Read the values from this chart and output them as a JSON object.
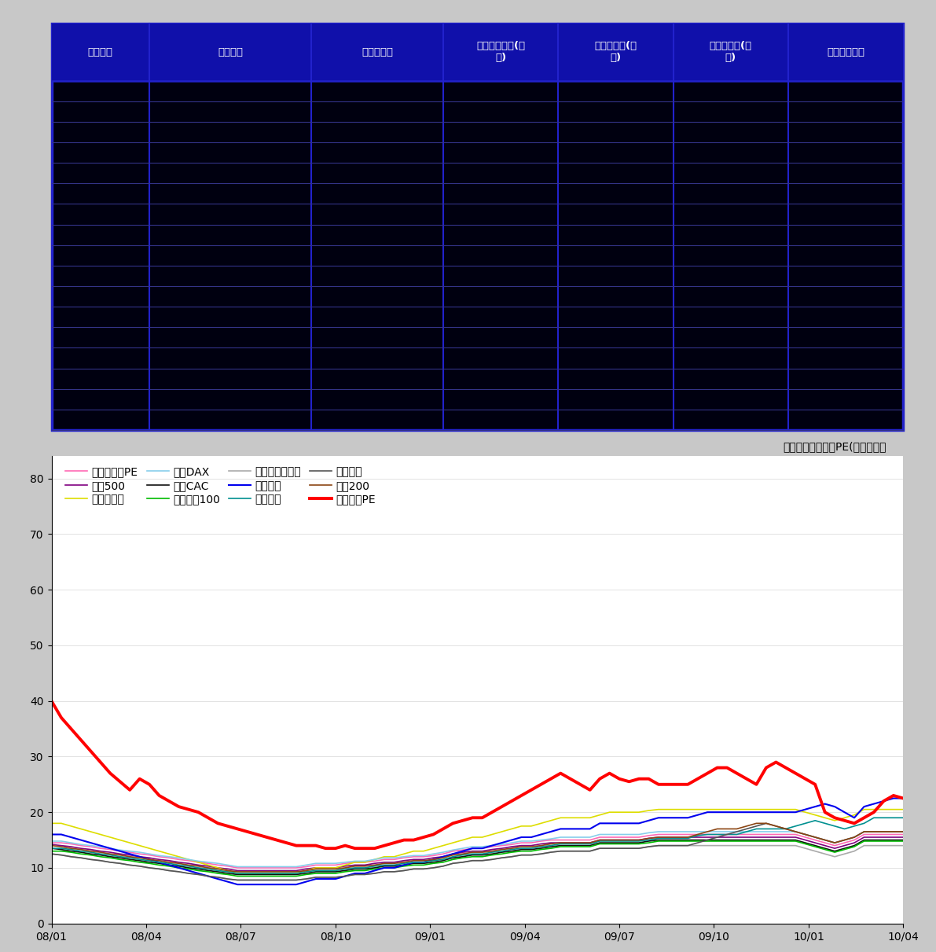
{
  "table": {
    "header_bg": "#1010aa",
    "header_text_color": "#ffffff",
    "body_bg": "#000010",
    "border_color": "#2222cc",
    "row_line_color": "#333388",
    "headers": [
      "股票代码",
      "股票简称",
      "可流通时间",
      "本期流通数量(万\n股)",
      "已流通数量(万\n股)",
      "待流通数量(万\n股)",
      "流通股份类型"
    ],
    "col_widths": [
      0.115,
      0.19,
      0.155,
      0.135,
      0.135,
      0.135,
      0.135
    ],
    "num_rows": 17
  },
  "chart": {
    "title": "全球主要市场最新PE(剔除负值）",
    "title_fontsize": 12,
    "bg_color": "#ffffff",
    "yticks": [
      0,
      10,
      20,
      30,
      40,
      50,
      60,
      70,
      80
    ],
    "ylim": [
      0,
      84
    ],
    "xtick_labels": [
      "08/01",
      "08/04",
      "08/07",
      "08/10",
      "09/01",
      "09/04",
      "09/07",
      "09/10",
      "10/01",
      "10/04"
    ],
    "legend_items": [
      {
        "label": "道琼斯指数PE",
        "color": "#ff69b4",
        "lw": 1.2
      },
      {
        "label": "标普500",
        "color": "#800080",
        "lw": 1.2
      },
      {
        "label": "加拿大标普",
        "color": "#dddd00",
        "lw": 1.2
      },
      {
        "label": "德国DAX",
        "color": "#87ceeb",
        "lw": 1.2
      },
      {
        "label": "法国CAC",
        "color": "#111111",
        "lw": 1.2
      },
      {
        "label": "英国富时100",
        "color": "#00bb00",
        "lw": 1.2
      },
      {
        "label": "新加坡海峡时报",
        "color": "#aaaaaa",
        "lw": 1.2
      },
      {
        "label": "日经指数",
        "color": "#0000ee",
        "lw": 1.5
      },
      {
        "label": "恒生指数",
        "color": "#009090",
        "lw": 1.2
      },
      {
        "label": "台湾加权",
        "color": "#555555",
        "lw": 1.2
      },
      {
        "label": "澳证200",
        "color": "#8b4513",
        "lw": 1.2
      },
      {
        "label": "上证综指PE",
        "color": "#ff0000",
        "lw": 2.8
      }
    ],
    "series": {
      "上证综指PE": [
        40,
        37,
        35,
        33,
        31,
        29,
        27,
        25.5,
        24,
        26,
        25,
        23,
        22,
        21,
        20.5,
        20,
        19,
        18,
        17.5,
        17,
        16.5,
        16,
        15.5,
        15,
        14.5,
        14,
        14,
        14,
        13.5,
        13.5,
        14,
        13.5,
        13.5,
        13.5,
        14,
        14.5,
        15,
        15,
        15.5,
        16,
        17,
        18,
        18.5,
        19,
        19,
        20,
        21,
        22,
        23,
        24,
        25,
        26,
        27,
        26,
        25,
        24,
        26,
        27,
        26,
        25.5,
        26,
        26,
        25,
        25,
        25,
        25,
        26,
        27,
        28,
        28,
        27,
        26,
        25,
        28,
        29,
        28,
        27,
        26,
        25,
        20,
        19,
        18.5,
        18,
        19,
        20,
        22,
        23,
        22.5,
        22
      ],
      "道琼斯指数PE": [
        14.5,
        14.5,
        14.3,
        14,
        13.8,
        13.5,
        13.3,
        13,
        12.8,
        12.5,
        12.3,
        12,
        11.8,
        11.5,
        11.3,
        11,
        10.8,
        10.5,
        10.3,
        10,
        10,
        10,
        10,
        10,
        10,
        10,
        10.2,
        10.5,
        10.5,
        10.5,
        10.8,
        11,
        11,
        11.2,
        11.5,
        11.5,
        11.8,
        12,
        12,
        12.2,
        12.5,
        13,
        13.2,
        13.5,
        13.5,
        13.8,
        14,
        14.2,
        14.5,
        14.5,
        14.8,
        15,
        15,
        15,
        15,
        15,
        15.5,
        15.5,
        15.5,
        15.5,
        15.5,
        15.8,
        16,
        16,
        16,
        16,
        16,
        16,
        16,
        16,
        16,
        16,
        16,
        16,
        16,
        16,
        16,
        15.5,
        15,
        14.5,
        14,
        14.5,
        15,
        16,
        16,
        16,
        16
      ],
      "标普500": [
        14.2,
        14,
        13.8,
        13.5,
        13.3,
        13,
        12.8,
        12.5,
        12.3,
        12,
        11.8,
        11.5,
        11.3,
        11,
        10.8,
        10.5,
        10.3,
        10,
        9.8,
        9.5,
        9.5,
        9.5,
        9.5,
        9.5,
        9.5,
        9.5,
        9.8,
        10,
        10,
        10,
        10.3,
        10.5,
        10.5,
        10.8,
        11,
        11,
        11.3,
        11.5,
        11.5,
        11.8,
        12,
        12.5,
        12.8,
        13,
        13,
        13.3,
        13.5,
        13.8,
        14,
        14,
        14.3,
        14.5,
        14.5,
        14.5,
        14.5,
        14.5,
        15,
        15,
        15,
        15,
        15,
        15.3,
        15.5,
        15.5,
        15.5,
        15.5,
        15.5,
        15.5,
        15.5,
        15.5,
        15.5,
        15.5,
        15.5,
        15.5,
        15.5,
        15.5,
        15.5,
        15,
        14.5,
        14,
        13.5,
        14,
        14.5,
        15.5,
        15.5,
        15.5,
        15.5
      ],
      "加拿大标普": [
        18,
        18,
        17.5,
        17,
        16.5,
        16,
        15.5,
        15,
        14.5,
        14,
        13.5,
        13,
        12.5,
        12,
        11.5,
        11,
        10.5,
        10,
        9.5,
        9,
        9,
        9,
        9,
        9,
        9,
        9,
        9.5,
        10,
        10,
        10,
        10.5,
        11,
        11,
        11.5,
        12,
        12,
        12.5,
        13,
        13,
        13.5,
        14,
        14.5,
        15,
        15.5,
        15.5,
        16,
        16.5,
        17,
        17.5,
        17.5,
        18,
        18.5,
        19,
        19,
        19,
        19,
        19.5,
        20,
        20,
        20,
        20,
        20.3,
        20.5,
        20.5,
        20.5,
        20.5,
        20.5,
        20.5,
        20.5,
        20.5,
        20.5,
        20.5,
        20.5,
        20.5,
        20.5,
        20.5,
        20.5,
        20,
        19.5,
        19,
        18.5,
        19,
        19.5,
        20.5,
        20.5,
        20.5,
        20.5
      ],
      "德国DAX": [
        14.8,
        14.8,
        14.5,
        14.2,
        14,
        13.8,
        13.5,
        13.2,
        13,
        12.8,
        12.5,
        12.2,
        12,
        11.8,
        11.5,
        11.2,
        11,
        10.8,
        10.5,
        10.2,
        10.2,
        10.2,
        10.2,
        10.2,
        10.2,
        10.2,
        10.5,
        10.8,
        10.8,
        10.8,
        11,
        11.2,
        11.2,
        11.5,
        11.8,
        11.8,
        12,
        12.2,
        12.2,
        12.5,
        12.8,
        13.2,
        13.5,
        13.8,
        13.8,
        14,
        14.2,
        14.5,
        14.8,
        14.8,
        15,
        15.2,
        15.5,
        15.5,
        15.5,
        15.5,
        16,
        16,
        16,
        16,
        16,
        16.3,
        16.5,
        16.5,
        16.5,
        16.5,
        16.5,
        16.5,
        16.5,
        16.5,
        16.5,
        16.5,
        16.5,
        16.5,
        16.5,
        16.5,
        16.5,
        16,
        15.5,
        15,
        14.5,
        15,
        15.5,
        16.5,
        16.5,
        16.5,
        16.5
      ],
      "法国CAC": [
        13.5,
        13.3,
        13,
        12.8,
        12.5,
        12.3,
        12,
        11.8,
        11.5,
        11.3,
        11,
        10.8,
        10.5,
        10.3,
        10,
        9.8,
        9.5,
        9.3,
        9,
        8.8,
        8.8,
        8.8,
        8.8,
        8.8,
        8.8,
        8.8,
        9,
        9.3,
        9.3,
        9.3,
        9.5,
        9.8,
        9.8,
        10,
        10.3,
        10.3,
        10.5,
        10.8,
        10.8,
        11,
        11.3,
        11.8,
        12,
        12.3,
        12.3,
        12.5,
        12.8,
        13,
        13.3,
        13.3,
        13.5,
        13.8,
        14,
        14,
        14,
        14,
        14.5,
        14.5,
        14.5,
        14.5,
        14.5,
        14.8,
        15,
        15,
        15,
        15,
        15,
        15,
        15,
        15,
        15,
        15,
        15,
        15,
        15,
        15,
        15,
        14.5,
        14,
        13.5,
        13,
        13.5,
        14,
        15,
        15,
        15,
        15
      ],
      "英国富时100": [
        13,
        13,
        12.8,
        12.5,
        12.3,
        12,
        11.8,
        11.5,
        11.3,
        11,
        10.8,
        10.5,
        10.3,
        10,
        9.8,
        9.5,
        9.3,
        9,
        8.8,
        8.5,
        8.5,
        8.5,
        8.5,
        8.5,
        8.5,
        8.5,
        8.8,
        9,
        9,
        9,
        9.3,
        9.5,
        9.5,
        9.8,
        10,
        10,
        10.3,
        10.5,
        10.5,
        10.8,
        11,
        11.5,
        11.8,
        12,
        12,
        12.3,
        12.5,
        12.8,
        13,
        13,
        13.3,
        13.5,
        13.8,
        13.8,
        13.8,
        13.8,
        14.3,
        14.3,
        14.3,
        14.3,
        14.3,
        14.5,
        14.8,
        14.8,
        14.8,
        14.8,
        14.8,
        14.8,
        14.8,
        14.8,
        14.8,
        14.8,
        14.8,
        14.8,
        14.8,
        14.8,
        14.8,
        14.3,
        13.8,
        13.3,
        12.8,
        13.3,
        13.8,
        14.8,
        14.8,
        14.8,
        14.8
      ],
      "新加坡海峡时报": [
        12.5,
        12.3,
        12,
        11.8,
        11.5,
        11.3,
        11,
        10.8,
        10.5,
        10.3,
        10,
        9.8,
        9.5,
        9.3,
        9,
        8.8,
        8.5,
        8.3,
        8,
        7.8,
        7.8,
        7.8,
        7.8,
        7.8,
        7.8,
        7.8,
        8,
        8.3,
        8.3,
        8.3,
        8.5,
        8.8,
        8.8,
        9,
        9.3,
        9.3,
        9.5,
        9.8,
        9.8,
        10,
        10.3,
        10.8,
        11,
        11.3,
        11.3,
        11.5,
        11.8,
        12,
        12.3,
        12.3,
        12.5,
        12.8,
        13,
        13,
        13,
        13,
        13.5,
        13.5,
        13.5,
        13.5,
        13.5,
        13.8,
        14,
        14,
        14,
        14,
        14,
        14,
        14,
        14,
        14,
        14,
        14,
        14,
        14,
        14,
        14,
        13.5,
        13,
        12.5,
        12,
        12.5,
        13,
        14,
        14,
        14,
        14
      ],
      "日経指数": [
        16,
        16,
        15.5,
        15,
        14.5,
        14,
        13.5,
        13,
        12.5,
        12,
        11.5,
        11,
        10.5,
        10,
        9.5,
        9,
        8.5,
        8,
        7.5,
        7,
        7,
        7,
        7,
        7,
        7,
        7,
        7.5,
        8,
        8,
        8,
        8.5,
        9,
        9,
        9.5,
        10,
        10,
        10.5,
        11,
        11,
        11.5,
        12,
        12.5,
        13,
        13.5,
        13.5,
        14,
        14.5,
        15,
        15.5,
        15.5,
        16,
        16.5,
        17,
        17,
        17,
        17,
        18,
        18,
        18,
        18,
        18,
        18.5,
        19,
        19,
        19,
        19,
        19.5,
        20,
        20,
        20,
        20,
        20,
        20,
        20,
        20,
        20,
        20,
        20.5,
        21,
        21.5,
        21,
        20,
        19,
        21,
        21.5,
        22,
        22.5
      ],
      "日经指数": [
        16,
        16,
        15.5,
        15,
        14.5,
        14,
        13.5,
        13,
        12.5,
        12,
        11.5,
        11,
        10.5,
        10,
        9.5,
        9,
        8.5,
        8,
        7.5,
        7,
        7,
        7,
        7,
        7,
        7,
        7,
        7.5,
        8,
        8,
        8,
        8.5,
        9,
        9,
        9.5,
        10,
        10,
        10.5,
        11,
        11,
        11.5,
        12,
        12.5,
        13,
        13.5,
        13.5,
        14,
        14.5,
        15,
        15.5,
        15.5,
        16,
        16.5,
        17,
        17,
        17,
        17,
        18,
        18,
        18,
        18,
        18,
        18.5,
        19,
        19,
        19,
        19,
        19.5,
        20,
        20,
        20,
        20,
        20,
        20,
        20,
        20,
        20,
        20,
        20.5,
        21,
        21.5,
        21,
        20,
        19,
        21,
        21.5,
        22,
        22.5
      ],
      "恒生指数": [
        13.5,
        13.5,
        13.3,
        13,
        12.8,
        12.5,
        12.3,
        12,
        11.8,
        11.5,
        11.3,
        11,
        10.8,
        10.5,
        10.3,
        10,
        9.8,
        9.5,
        9.3,
        9,
        9,
        9,
        9,
        9,
        9,
        9,
        9.3,
        9.5,
        9.5,
        9.5,
        9.8,
        10,
        10,
        10.3,
        10.5,
        10.5,
        10.8,
        11,
        11,
        11.3,
        11.5,
        12,
        12.3,
        12.5,
        12.5,
        12.8,
        13,
        13.3,
        13.5,
        13.5,
        13.8,
        14,
        14.3,
        14.3,
        14.3,
        14.3,
        14.8,
        14.8,
        14.8,
        14.8,
        14.8,
        15,
        15.3,
        15.3,
        15.3,
        15.3,
        15.8,
        16,
        16,
        16,
        16,
        16.5,
        17,
        17,
        17,
        17,
        17.5,
        18,
        18.5,
        18,
        17.5,
        17,
        17.5,
        18,
        19,
        19,
        19,
        19
      ],
      "台湾加权": [
        12.5,
        12.3,
        12,
        11.8,
        11.5,
        11.3,
        11,
        10.8,
        10.5,
        10.3,
        10,
        9.8,
        9.5,
        9.3,
        9,
        8.8,
        8.5,
        8.3,
        8,
        7.8,
        7.8,
        7.8,
        7.8,
        7.8,
        7.8,
        7.8,
        8,
        8.3,
        8.3,
        8.3,
        8.5,
        8.8,
        8.8,
        9,
        9.3,
        9.3,
        9.5,
        9.8,
        9.8,
        10,
        10.3,
        10.8,
        11,
        11.3,
        11.3,
        11.5,
        11.8,
        12,
        12.3,
        12.3,
        12.5,
        12.8,
        13,
        13,
        13,
        13,
        13.5,
        13.5,
        13.5,
        13.5,
        13.5,
        13.8,
        14,
        14,
        14,
        14,
        14.5,
        15,
        15.5,
        16,
        16.5,
        17,
        17.5,
        18,
        17.5,
        17,
        16.5,
        16,
        15.5,
        15,
        14.5,
        15,
        15.5,
        16.5,
        16.5,
        16.5,
        16.5
      ],
      "澳证200": [
        14,
        13.8,
        13.5,
        13.3,
        13,
        12.8,
        12.5,
        12.3,
        12,
        11.8,
        11.5,
        11.3,
        11,
        10.8,
        10.5,
        10.3,
        10,
        9.8,
        9.5,
        9.3,
        9.3,
        9.3,
        9.3,
        9.3,
        9.3,
        9.3,
        9.5,
        9.8,
        9.8,
        9.8,
        10,
        10.3,
        10.3,
        10.5,
        10.8,
        10.8,
        11,
        11.3,
        11.3,
        11.5,
        11.8,
        12.3,
        12.5,
        12.8,
        12.8,
        13,
        13.3,
        13.5,
        13.8,
        13.8,
        14,
        14.3,
        14.5,
        14.5,
        14.5,
        14.5,
        15,
        15,
        15,
        15,
        15,
        15.3,
        15.5,
        15.5,
        15.5,
        15.5,
        16,
        16.5,
        17,
        17,
        17,
        17.5,
        18,
        18,
        17.5,
        17,
        16.5,
        16,
        15.5,
        15,
        14.5,
        15,
        15.5,
        16.5,
        16.5,
        16.5,
        16.5
      ]
    }
  }
}
